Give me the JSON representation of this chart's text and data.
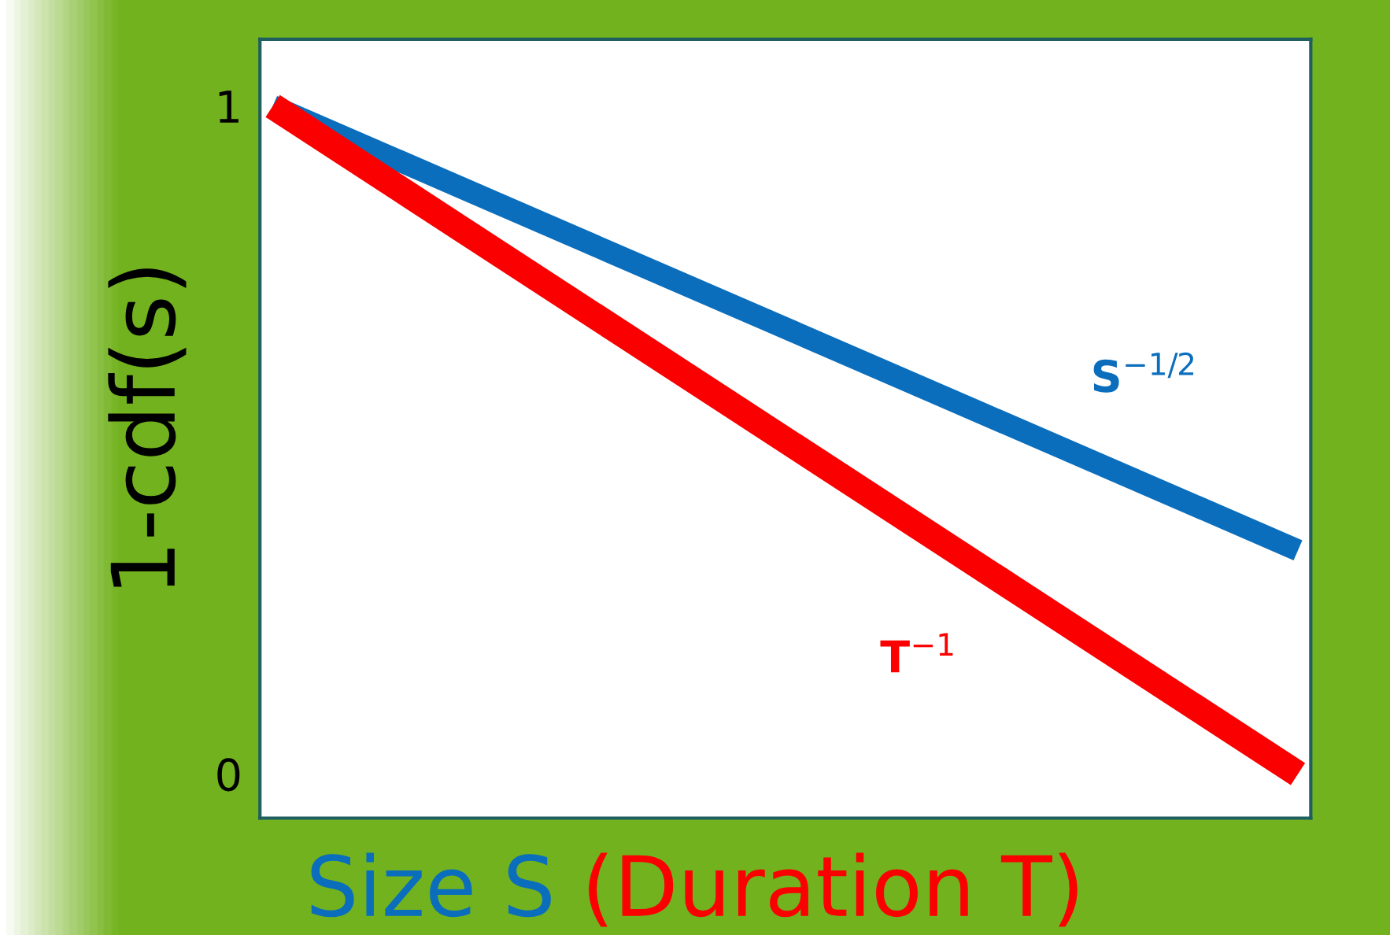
{
  "chart_data": {
    "type": "line",
    "xlabel": "Size S (Duration T)",
    "ylabel": "1-cdf(s)",
    "categories": [
      null,
      null,
      null,
      null,
      null,
      null,
      null,
      null,
      null,
      null,
      null,
      null,
      null,
      null,
      null,
      null,
      null,
      null,
      null,
      null,
      null,
      null,
      null,
      null,
      null,
      null,
      null,
      null,
      null,
      null,
      null,
      null,
      null,
      null,
      null,
      null,
      null,
      null,
      null,
      null,
      null
    ],
    "series": [
      {
        "name": "S$^{−1/2}$",
        "color": "#0a6ebd",
        "values": [
          1,
          null,
          null,
          null,
          null,
          null,
          null,
          null,
          null,
          null,
          null,
          null,
          null,
          null,
          null,
          null,
          null,
          null,
          null,
          null,
          null,
          null,
          null,
          null,
          null,
          null,
          null,
          null,
          null,
          null,
          null,
          null,
          null,
          null,
          null,
          null,
          null,
          null,
          null,
          null,
          0.335
        ]
      },
      {
        "name": "T$^{−1}$",
        "color": "#fa0000",
        "values": [
          1,
          null,
          null,
          null,
          null,
          null,
          null,
          null,
          null,
          null,
          null,
          null,
          null,
          null,
          null,
          null,
          null,
          null,
          null,
          null,
          null,
          null,
          null,
          null,
          null,
          null,
          null,
          null,
          null,
          null,
          null,
          null,
          null,
          null,
          null,
          null,
          null,
          null,
          null,
          null,
          0
        ]
      }
    ],
    "ylim": [
      -0.066,
      1.1
    ],
    "yticks": [
      0,
      1
    ],
    "grid": false,
    "marker": "none",
    "line_style": "solid"
  }
}
